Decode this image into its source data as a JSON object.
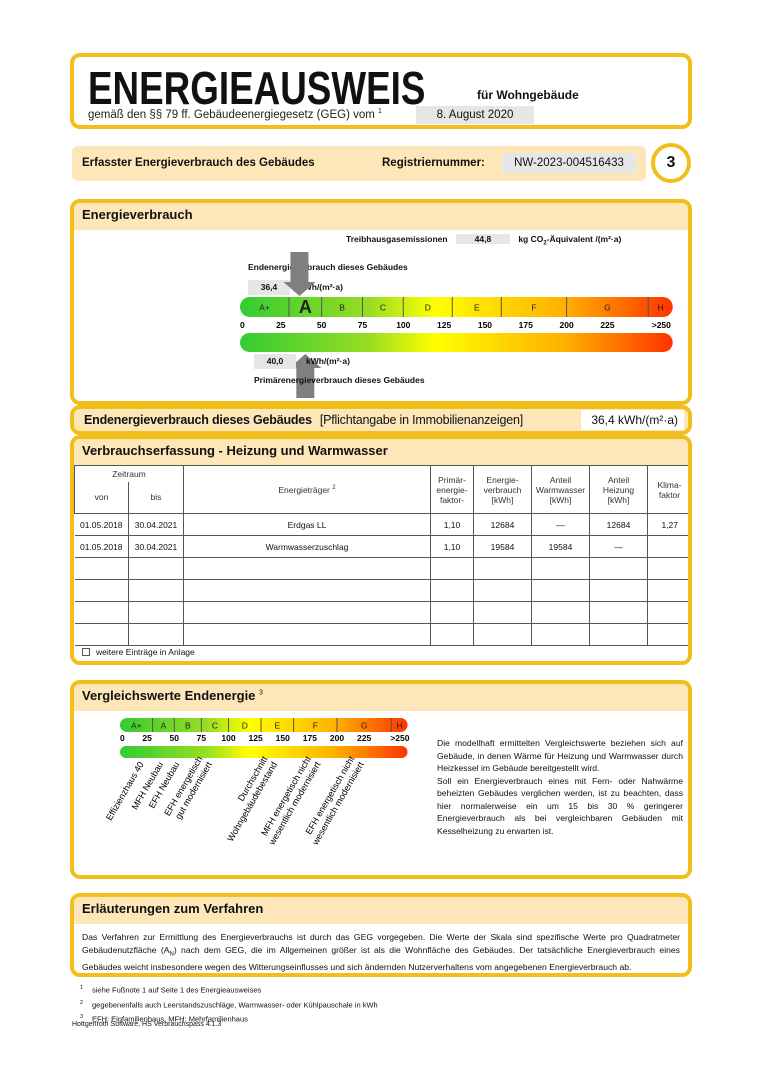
{
  "header": {
    "title": "ENERGIEAUSWEIS",
    "subtitle": "für Wohngebäude",
    "law_text": "gemäß den §§ 79 ff. Gebäudeenergiegesetz (GEG) vom",
    "law_footnote": "1",
    "law_date": "8. August 2020"
  },
  "section_bar": {
    "label": "Erfasster Energieverbrauch des Gebäudes",
    "reg_label": "Registriernummer:",
    "reg_number": "NW-2023-004516433",
    "page_number": "3"
  },
  "energy": {
    "title": "Energieverbrauch",
    "ghg_label": "Treibhausgasemissionen",
    "ghg_value": "44,8",
    "ghg_unit_pre": "kg CO",
    "ghg_unit_sub": "2",
    "ghg_unit_post": "-Äquivalent /(m²·a)",
    "final_label": "Endenergieverbrauch dieses Gebäudes",
    "final_value": "36,4",
    "final_value_num": 36.4,
    "unit": "kWh/(m²·a)",
    "primary_label": "Primärenergieverbrauch dieses Gebäudes",
    "primary_value": "40,0",
    "primary_value_num": 40.0,
    "current_class": "A"
  },
  "scale": {
    "classes": [
      {
        "label": "A+",
        "from": 0,
        "to": 30
      },
      {
        "label": "A",
        "from": 30,
        "to": 50
      },
      {
        "label": "B",
        "from": 50,
        "to": 75
      },
      {
        "label": "C",
        "from": 75,
        "to": 100
      },
      {
        "label": "D",
        "from": 100,
        "to": 130
      },
      {
        "label": "E",
        "from": 130,
        "to": 160
      },
      {
        "label": "F",
        "from": 160,
        "to": 200
      },
      {
        "label": "G",
        "from": 200,
        "to": 250
      },
      {
        "label": "H",
        "from": 250,
        "to": 265
      }
    ],
    "ticks": [
      {
        "v": 0,
        "label": "0"
      },
      {
        "v": 25,
        "label": "25"
      },
      {
        "v": 50,
        "label": "50"
      },
      {
        "v": 75,
        "label": "75"
      },
      {
        "v": 100,
        "label": "100"
      },
      {
        "v": 125,
        "label": "125"
      },
      {
        "v": 150,
        "label": "150"
      },
      {
        "v": 175,
        "label": "175"
      },
      {
        "v": 200,
        "label": "200"
      },
      {
        "v": 225,
        "label": "225"
      },
      {
        "v": 258,
        "label": ">250"
      }
    ],
    "colors": [
      "#33cc33",
      "#99dd22",
      "#ffff00",
      "#ffb000",
      "#ff3300"
    ]
  },
  "mandatory": {
    "label": "Endenergieverbrauch dieses Gebäudes",
    "note": "[Pflichtangabe in Immobilienanzeigen]",
    "value": "36,4 kWh/(m²·a)"
  },
  "consumption": {
    "title": "Verbrauchserfassung - Heizung und Warmwasser",
    "headers": {
      "period": "Zeitraum",
      "from": "von",
      "to": "bis",
      "carrier": "Energieträger",
      "carrier_fn": "2",
      "pef": "Primär-\nenergie-\nfaktor-",
      "consumption": "Energie-\nverbrauch\n[kWh]",
      "ww": "Anteil\nWarmwasser\n[kWh]",
      "heating": "Anteil\nHeizung\n[kWh]",
      "climate": "Klima-\nfaktor"
    },
    "rows": [
      [
        "01.05.2018",
        "30.04.2021",
        "Erdgas LL",
        "1,10",
        "12684",
        "—",
        "12684",
        "1,27"
      ],
      [
        "01.05.2018",
        "30.04.2021",
        "Warmwasserzuschlag",
        "1,10",
        "19584",
        "19584",
        "—",
        ""
      ]
    ],
    "more_label": "weitere Einträge in Anlage"
  },
  "comparison": {
    "title": "Vergleichswerte Endenergie",
    "title_fn": "3",
    "labels": [
      {
        "v": 22,
        "lines": [
          "Effizienzhaus 40"
        ]
      },
      {
        "v": 40,
        "lines": [
          "MFH Neubau"
        ]
      },
      {
        "v": 55,
        "lines": [
          "EFH Neubau"
        ]
      },
      {
        "v": 85,
        "lines": [
          "EFH energetisch",
          "gut modernisiert"
        ]
      },
      {
        "v": 145,
        "lines": [
          "Durchschnitt",
          "Wohngebäudebestand"
        ]
      },
      {
        "v": 185,
        "lines": [
          "MFH energetisch nicht",
          "wesentlich modernisiert"
        ]
      },
      {
        "v": 225,
        "lines": [
          "EFH energetisch nicht",
          "wesentlich modernisiert"
        ]
      }
    ],
    "text1": "Die modellhaft ermittelten Vergleichswerte beziehen sich auf Gebäude, in denen Wärme für Heizung und Warmwasser durch Heizkessel im Gebäude bereitgestellt wird.",
    "text2": "Soll ein Energieverbrauch eines mit Fern- oder Nahwärme beheizten Gebäudes verglichen werden, ist zu beachten, dass hier normalerweise ein um 15 bis 30 % geringerer Energieverbrauch als bei vergleichbaren Gebäuden mit Kesselheizung zu erwarten ist."
  },
  "explanation": {
    "title": "Erläuterungen zum Verfahren",
    "text_a": "Das Verfahren zur Ermittlung des Energieverbrauchs ist durch das GEG vorgegeben. Die Werte der Skala sind spezifische Werte pro Quadratmeter Gebäudenutzfläche (A",
    "text_sub": "N",
    "text_b": ") nach dem GEG, die im Allgemeinen größer ist als die Wohnfläche des Gebäudes. Der tatsächliche Energieverbrauch eines Gebäudes weicht insbesondere wegen des Witterungseinflusses und sich ändernden Nutzerverhaltens vom angegebenen Energieverbrauch ab."
  },
  "footnotes": [
    {
      "n": "1",
      "text": "siehe Fußnote 1 auf Seite 1 des Energieausweises"
    },
    {
      "n": "2",
      "text": "gegebenenfalls auch Leerstandszuschläge, Warmwasser- oder Kühlpauschale in kWh"
    },
    {
      "n": "3",
      "text": "EFH: Einfamilienhaus, MFH: Mehrfamilienhaus"
    }
  ],
  "software": "Hottgenroth Software, HS Verbrauchspass 4.1.3"
}
